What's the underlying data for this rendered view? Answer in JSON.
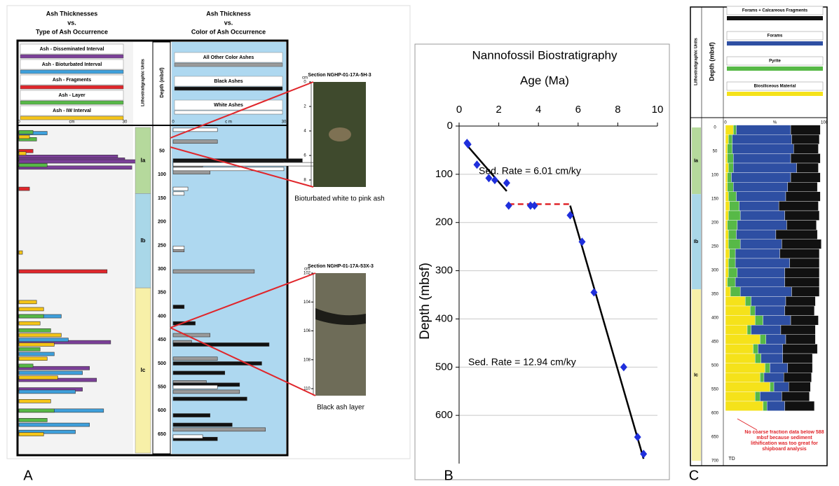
{
  "chart_data": [
    {
      "type": "ash-log",
      "panel_label": "A",
      "units_label": "Lithostratigraphic Units",
      "depth_label": "Depth (mbsf)",
      "ylim": [
        0,
        690
      ],
      "yticks": [
        50,
        100,
        150,
        200,
        250,
        300,
        350,
        400,
        450,
        500,
        550,
        600,
        650
      ],
      "units": [
        {
          "name": "Ia",
          "top": 0,
          "bottom": 140,
          "color": "#b5d99c"
        },
        {
          "name": "Ib",
          "top": 140,
          "bottom": 340,
          "color": "#a9d7e8"
        },
        {
          "name": "Ic",
          "top": 340,
          "bottom": 690,
          "color": "#f7f0a8"
        }
      ],
      "left": {
        "title": [
          "Ash Thicknesses",
          "vs.",
          "Type of Ash Occurrence"
        ],
        "xlim": [
          0,
          30
        ],
        "xticks": [
          0,
          30
        ],
        "x_label": "cm",
        "series": [
          {
            "name": "Ash - Disseminated Interval",
            "color": "#7b3f98",
            "depth": [
              62,
              68,
              72,
              85,
              455,
              510,
              535,
              555
            ],
            "values": [
              28,
              30,
              36,
              32,
              26,
              20,
              22,
              18
            ]
          },
          {
            "name": "Ash - Bioturbated Interval",
            "color": "#3ea0dc",
            "depth": [
              12,
              400,
              450,
              480,
              520,
              560,
              600,
              630,
              645
            ],
            "values": [
              8,
              12,
              14,
              10,
              18,
              16,
              24,
              20,
              16
            ]
          },
          {
            "name": "Ash - Fragments",
            "color": "#e0262b",
            "depth": [
              50,
              130,
              305
            ],
            "values": [
              4,
              3,
              25
            ]
          },
          {
            "name": "Ash - Layer",
            "color": "#57b947",
            "depth": [
              10,
              25,
              80,
              400,
              430,
              470,
              505,
              600,
              620
            ],
            "values": [
              4,
              5,
              8,
              7,
              9,
              6,
              4,
              10,
              8
            ]
          },
          {
            "name": "Ash - IW Interval",
            "color": "#f5c518",
            "depth": [
              20,
              55,
              265,
              370,
              385,
              415,
              440,
              460,
              490,
              530,
              580,
              650
            ],
            "values": [
              3,
              2,
              1,
              5,
              7,
              6,
              12,
              10,
              8,
              11,
              9,
              7
            ]
          }
        ]
      },
      "right": {
        "title": [
          "Ash Thickness",
          "vs.",
          "Color of Ash Occurrence"
        ],
        "xlim": [
          0,
          30
        ],
        "xticks": [
          0,
          30
        ],
        "x_label": "c m",
        "series": [
          {
            "name": "All Other Color Ashes",
            "color": "#9a9a9a",
            "depth": [
              30,
              80,
              95,
              260,
              305,
              440,
              455,
              490,
              540,
              560,
              640
            ],
            "values": [
              12,
              8,
              10,
              3,
              22,
              10,
              5,
              12,
              9,
              18,
              25
            ]
          },
          {
            "name": "Black Ashes",
            "color": "#111111",
            "depth": [
              70,
              75,
              380,
              415,
              460,
              500,
              520,
              545,
              575,
              610,
              630,
              660
            ],
            "values": [
              35,
              30,
              3,
              6,
              26,
              24,
              14,
              18,
              20,
              10,
              16,
              12
            ]
          },
          {
            "name": "White Ashes",
            "color": "#ffffff",
            "depth": [
              5,
              78,
              88,
              130,
              140,
              255,
              550,
              655
            ],
            "values": [
              12,
              40,
              30,
              4,
              3,
              3,
              12,
              8
            ]
          }
        ]
      },
      "insets": [
        {
          "title": "Section NGHP-01-17A-5H-3",
          "unit_label": "cm",
          "ticks": [
            0,
            2,
            4,
            6,
            8
          ],
          "caption": "Bioturbated white to pink ash"
        },
        {
          "title": "Section NGHP-01-17A-53X-3",
          "unit_label": "cm",
          "ticks": [
            102,
            104,
            106,
            108,
            110
          ],
          "caption": "Black ash layer"
        }
      ]
    },
    {
      "type": "scatter",
      "panel_label": "B",
      "title": "Nannofossil Biostratigraphy",
      "x_label": "Age (Ma)",
      "y_label": "Depth (mbsf)",
      "xlim": [
        0,
        10
      ],
      "xticks": [
        0,
        2,
        4,
        6,
        8,
        10
      ],
      "ylim": [
        0,
        700
      ],
      "yticks": [
        0,
        100,
        200,
        300,
        400,
        500,
        600
      ],
      "y_inverted": true,
      "grid": true,
      "color": "#1f2fdc",
      "x": [
        0.4,
        0.45,
        0.9,
        1.5,
        1.8,
        2.4,
        2.5,
        3.6,
        3.8,
        5.6,
        6.2,
        6.8,
        8.3,
        9.0,
        9.3
      ],
      "values": [
        35,
        38,
        80,
        108,
        112,
        118,
        165,
        165,
        165,
        185,
        240,
        345,
        500,
        645,
        680
      ],
      "lines": [
        {
          "color": "#000000",
          "dashed": false,
          "x": [
            0.4,
            2.4
          ],
          "values": [
            40,
            135
          ]
        },
        {
          "color": "#e0262b",
          "dashed": true,
          "x": [
            2.5,
            5.6
          ],
          "values": [
            162,
            162
          ]
        },
        {
          "color": "#000000",
          "dashed": false,
          "x": [
            5.6,
            9.3
          ],
          "values": [
            165,
            690
          ]
        }
      ],
      "annotations": [
        "Sed. Rate = 6.01 cm/ky",
        "Sed. Rate = 12.94 cm/ky"
      ]
    },
    {
      "type": "stacked-log",
      "panel_label": "C",
      "units_label": "Lithostratigraphic Units",
      "depth_label": "Depth (mbsf)",
      "x_label": "%",
      "xlim": [
        0,
        100
      ],
      "xticks": [
        0,
        100
      ],
      "ylim": [
        0,
        700
      ],
      "yticks": [
        0,
        50,
        100,
        150,
        200,
        250,
        300,
        350,
        400,
        450,
        500,
        550,
        600,
        650,
        700
      ],
      "units": [
        {
          "name": "Ia",
          "top": 0,
          "bottom": 140,
          "color": "#b5d99c"
        },
        {
          "name": "Ib",
          "top": 140,
          "bottom": 340,
          "color": "#a9d7e8"
        },
        {
          "name": "Ic",
          "top": 340,
          "bottom": 700,
          "color": "#f7f0a8"
        }
      ],
      "depth": [
        5,
        25,
        45,
        65,
        85,
        105,
        125,
        145,
        165,
        185,
        205,
        225,
        245,
        265,
        285,
        305,
        325,
        345,
        365,
        385,
        405,
        425,
        445,
        465,
        485,
        505,
        525,
        545,
        565,
        585
      ],
      "series": [
        {
          "name": "Biosiliceous Material",
          "color": "#f5e21a",
          "values": [
            8,
            3,
            2,
            2,
            3,
            2,
            2,
            3,
            4,
            3,
            2,
            3,
            3,
            4,
            3,
            3,
            2,
            5,
            20,
            25,
            30,
            22,
            35,
            28,
            30,
            40,
            35,
            45,
            30,
            38
          ]
        },
        {
          "name": "Pyrite",
          "color": "#57b947",
          "values": [
            3,
            4,
            5,
            6,
            5,
            4,
            6,
            8,
            10,
            12,
            10,
            8,
            12,
            6,
            7,
            9,
            8,
            10,
            6,
            5,
            8,
            4,
            6,
            5,
            6,
            5,
            4,
            4,
            5,
            4
          ]
        },
        {
          "name": "Forams",
          "color": "#2e4fa3",
          "values": [
            55,
            60,
            62,
            58,
            64,
            60,
            55,
            50,
            40,
            45,
            50,
            40,
            42,
            45,
            55,
            48,
            50,
            52,
            35,
            30,
            28,
            30,
            20,
            25,
            22,
            18,
            20,
            15,
            22,
            18
          ]
        },
        {
          "name": "Forams + Calcareous Fragments",
          "color": "#111111",
          "values": [
            30,
            28,
            25,
            30,
            22,
            30,
            30,
            35,
            40,
            35,
            30,
            42,
            40,
            40,
            30,
            35,
            35,
            28,
            30,
            30,
            28,
            35,
            30,
            35,
            30,
            25,
            28,
            22,
            28,
            30
          ]
        }
      ],
      "note": "No coarse fraction data below 588 mbsf because sediment lithification was too great for shipboard analysis",
      "end_label": "TD"
    }
  ]
}
